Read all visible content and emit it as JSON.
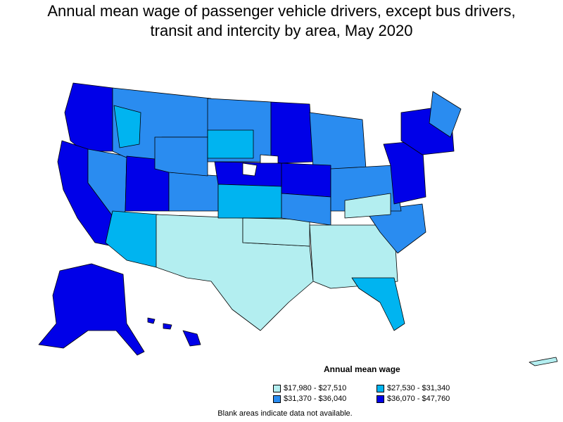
{
  "title_line1": "Annual mean wage of passenger vehicle drivers, except bus drivers,",
  "title_line2": "transit and intercity by area, May 2020",
  "legend": {
    "title": "Annual mean wage",
    "items": [
      {
        "label": "$17,980 - $27,510",
        "color": "#b3eef0"
      },
      {
        "label": "$27,530 - $31,340",
        "color": "#00b4f0"
      },
      {
        "label": "$31,370 - $36,040",
        "color": "#2a8cf0"
      },
      {
        "label": "$36,070 - $47,760",
        "color": "#0000e8"
      }
    ]
  },
  "footnote": "Blank areas indicate data not available.",
  "colors": {
    "tier1": "#b3eef0",
    "tier2": "#00b4f0",
    "tier3": "#2a8cf0",
    "tier4": "#0000e8",
    "border": "#000000"
  }
}
